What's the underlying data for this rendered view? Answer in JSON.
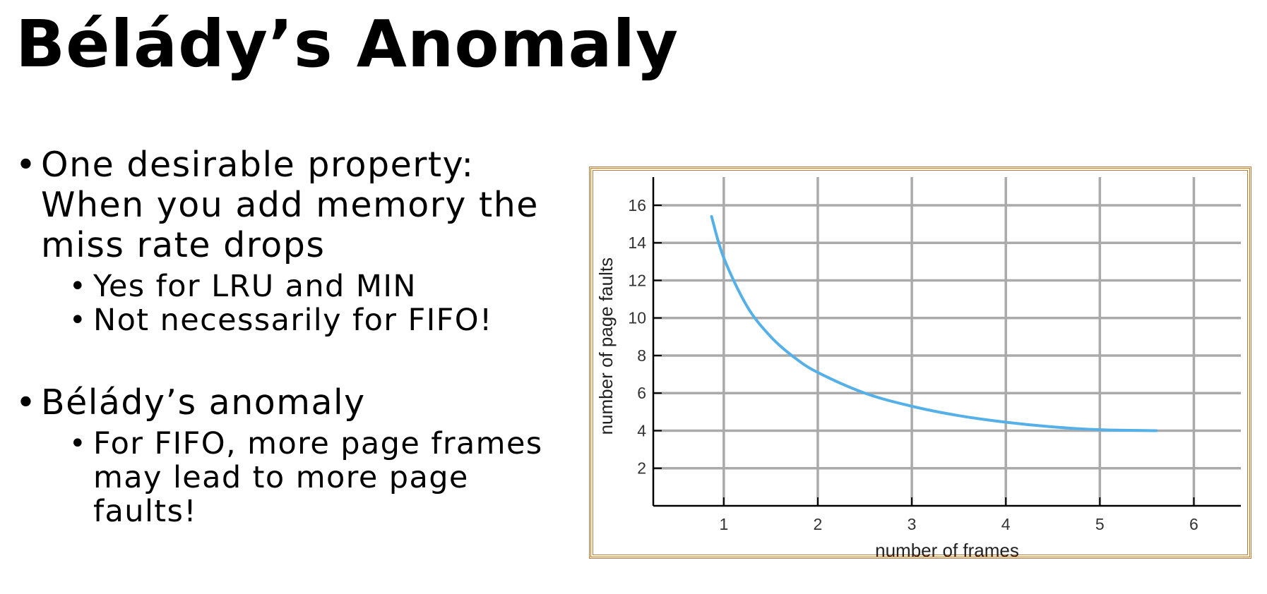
{
  "slide": {
    "title": "Bélády’s Anomaly",
    "bullets": [
      {
        "text": "One desirable property: When you add memory the miss rate drops",
        "sub": [
          "Yes for LRU and MIN",
          "Not necessarily for FIFO!"
        ]
      },
      {
        "text": "Bélády’s anomaly",
        "sub": [
          "For FIFO, more page frames may lead to more page faults!"
        ]
      }
    ],
    "bullet_glyph": "•"
  },
  "colors": {
    "curve": "#56b0e8",
    "grid": "#aaaaaa",
    "frame": "#c67a2c",
    "axis": "#000000"
  },
  "chart_data": {
    "type": "line",
    "xlabel": "number of frames",
    "ylabel": "number of page faults",
    "xlim": [
      0.25,
      6.5
    ],
    "ylim": [
      0,
      17.5
    ],
    "x_ticks": [
      1,
      2,
      3,
      4,
      5,
      6
    ],
    "y_ticks": [
      2,
      4,
      6,
      8,
      10,
      12,
      14,
      16
    ],
    "grid": true,
    "series": [
      {
        "x": [
          0.87,
          1.0,
          1.25,
          1.5,
          1.75,
          2.0,
          2.5,
          3.0,
          3.5,
          4.0,
          4.5,
          5.0,
          5.6
        ],
        "values": [
          15.4,
          13.2,
          10.6,
          9.0,
          7.9,
          7.1,
          6.0,
          5.3,
          4.8,
          4.45,
          4.2,
          4.05,
          4.0
        ]
      }
    ]
  }
}
